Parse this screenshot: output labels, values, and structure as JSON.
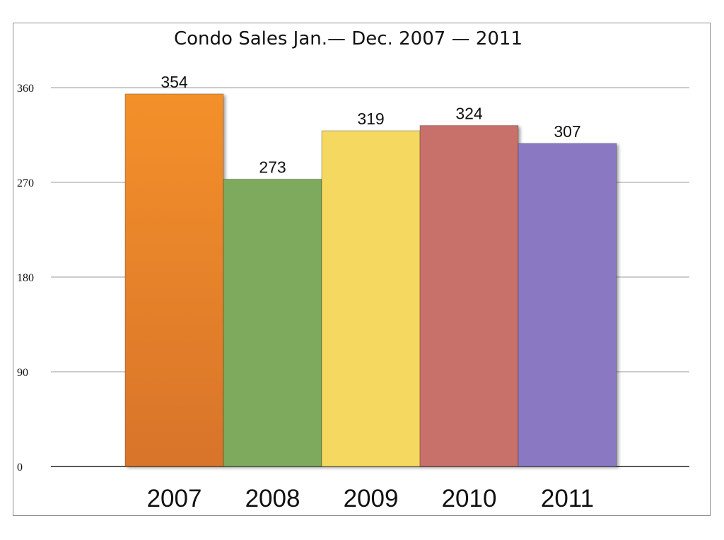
{
  "chart_data": {
    "type": "bar",
    "title": "Condo Sales Jan.— Dec. 2007 — 2011",
    "categories": [
      "2007",
      "2008",
      "2009",
      "2010",
      "2011"
    ],
    "values": [
      354,
      273,
      319,
      324,
      307
    ],
    "data_labels": [
      "354",
      "273",
      "319",
      "324",
      "307"
    ],
    "ylim": [
      0,
      360
    ],
    "yticks": [
      0,
      90,
      180,
      270,
      360
    ],
    "ytick_labels": [
      "0",
      "90",
      "180",
      "270",
      "360"
    ],
    "xlabel": "",
    "ylabel": "",
    "grid": true,
    "legend": "none",
    "colors": [
      "#f08a2a",
      "#7daa5c",
      "#f5d860",
      "#c8716a",
      "#8a78c2"
    ]
  }
}
